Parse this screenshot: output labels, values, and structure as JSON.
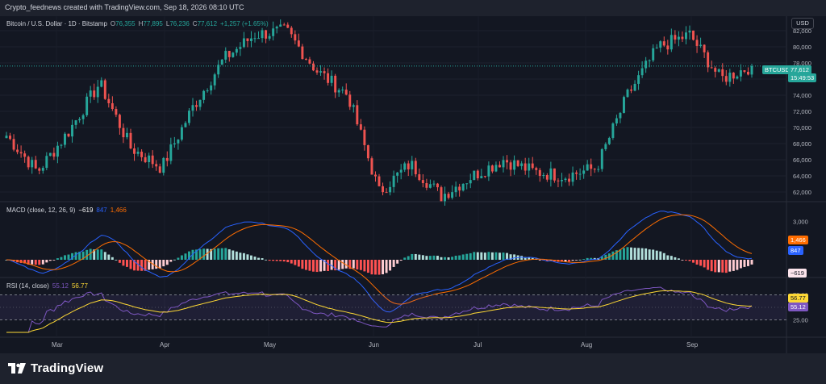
{
  "header": {
    "caption": "Crypto_feednews created with TradingView.com, Sep 18, 2026 08:10 UTC"
  },
  "main_pane": {
    "symbol": "Bitcoin / U.S. Dollar · 1D · Bitstamp",
    "open_label": "O",
    "open": "76,355",
    "high_label": "H",
    "high": "77,895",
    "low_label": "L",
    "low": "76,236",
    "close_label": "C",
    "close": "77,612",
    "change": "+1,257 (+1.65%)",
    "currency_button": "USD",
    "ticker_tag": "BTCUSD",
    "price_tag": "77,612",
    "countdown_tag": "15:49:53",
    "price_axis": [
      "82,000",
      "80,000",
      "78,000",
      "76,000",
      "74,000",
      "72,000",
      "70,000",
      "68,000",
      "66,000",
      "64,000",
      "62,000"
    ]
  },
  "macd_pane": {
    "title": "MACD (close, 12, 26, 9)",
    "histogram": "−619",
    "macd": "847",
    "signal": "1,466",
    "axis": [
      "3,000"
    ],
    "signal_tag": "1,466",
    "macd_tag": "847",
    "hist_tag": "−619"
  },
  "rsi_pane": {
    "title": "RSI (14, close)",
    "rsi": "55.12",
    "rsi_ma": "56.77",
    "axis": [
      "75.00",
      "25.00"
    ],
    "ma_tag": "56.77",
    "rsi_tag": "55.12"
  },
  "time_axis": [
    "Mar",
    "Apr",
    "May",
    "Jun",
    "Jul",
    "Aug",
    "Sep"
  ],
  "footer": {
    "brand": "TradingView"
  },
  "colors": {
    "up": "#26a69a",
    "down": "#ef5350",
    "macd": "#2962ff",
    "signal": "#ff6d00",
    "rsi": "#7e57c2",
    "rsi_ma": "#fdd835",
    "background": "#131722"
  },
  "chart_data": {
    "type": "candlestick",
    "symbol": "BTCUSD",
    "interval": "1D",
    "price_range": [
      61000,
      83000
    ],
    "last_close": 77612,
    "approx_close_path": [
      {
        "x": "Feb",
        "y": 69000
      },
      {
        "x": "Feb",
        "y": 64500
      },
      {
        "x": "Mar",
        "y": 69500
      },
      {
        "x": "Mar",
        "y": 75500
      },
      {
        "x": "Mar",
        "y": 67500
      },
      {
        "x": "Apr",
        "y": 65000
      },
      {
        "x": "Apr",
        "y": 72500
      },
      {
        "x": "Apr",
        "y": 78500
      },
      {
        "x": "May",
        "y": 81500
      },
      {
        "x": "May",
        "y": 82000
      },
      {
        "x": "May",
        "y": 77000
      },
      {
        "x": "May",
        "y": 74000
      },
      {
        "x": "Jun",
        "y": 62000
      },
      {
        "x": "Jun",
        "y": 65500
      },
      {
        "x": "Jun",
        "y": 61500
      },
      {
        "x": "Jul",
        "y": 64000
      },
      {
        "x": "Jul",
        "y": 66000
      },
      {
        "x": "Jul",
        "y": 64500
      },
      {
        "x": "Aug",
        "y": 64000
      },
      {
        "x": "Aug",
        "y": 65000
      },
      {
        "x": "Aug",
        "y": 74000
      },
      {
        "x": "Aug",
        "y": 80000
      },
      {
        "x": "Sep",
        "y": 81500
      },
      {
        "x": "Sep",
        "y": 76000
      },
      {
        "x": "Sep",
        "y": 77612
      }
    ],
    "macd": {
      "macd": 847,
      "signal": 1466,
      "histogram": -619
    },
    "rsi": {
      "value": 55.12,
      "ma": 56.77,
      "levels": [
        75,
        25
      ]
    }
  }
}
